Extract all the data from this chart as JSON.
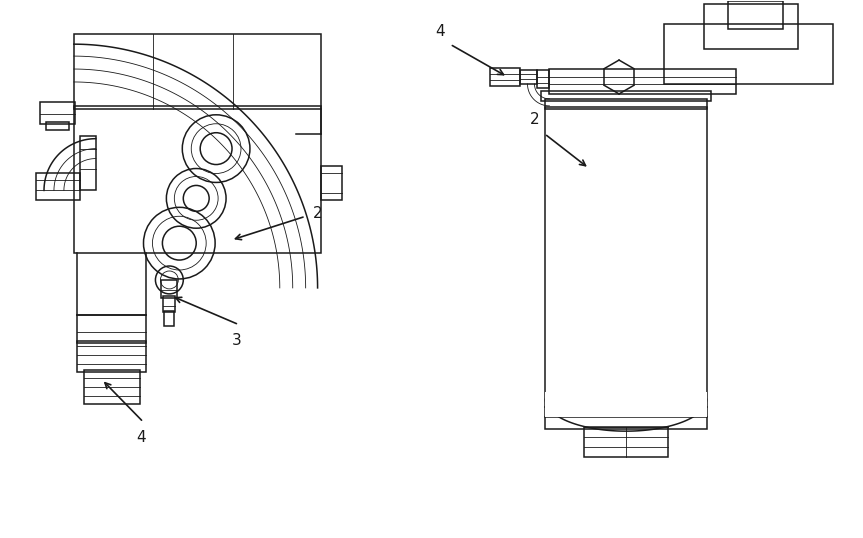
{
  "bg_color": "#ffffff",
  "line_color": "#1a1a1a",
  "lw": 1.1,
  "tlw": 0.6
}
